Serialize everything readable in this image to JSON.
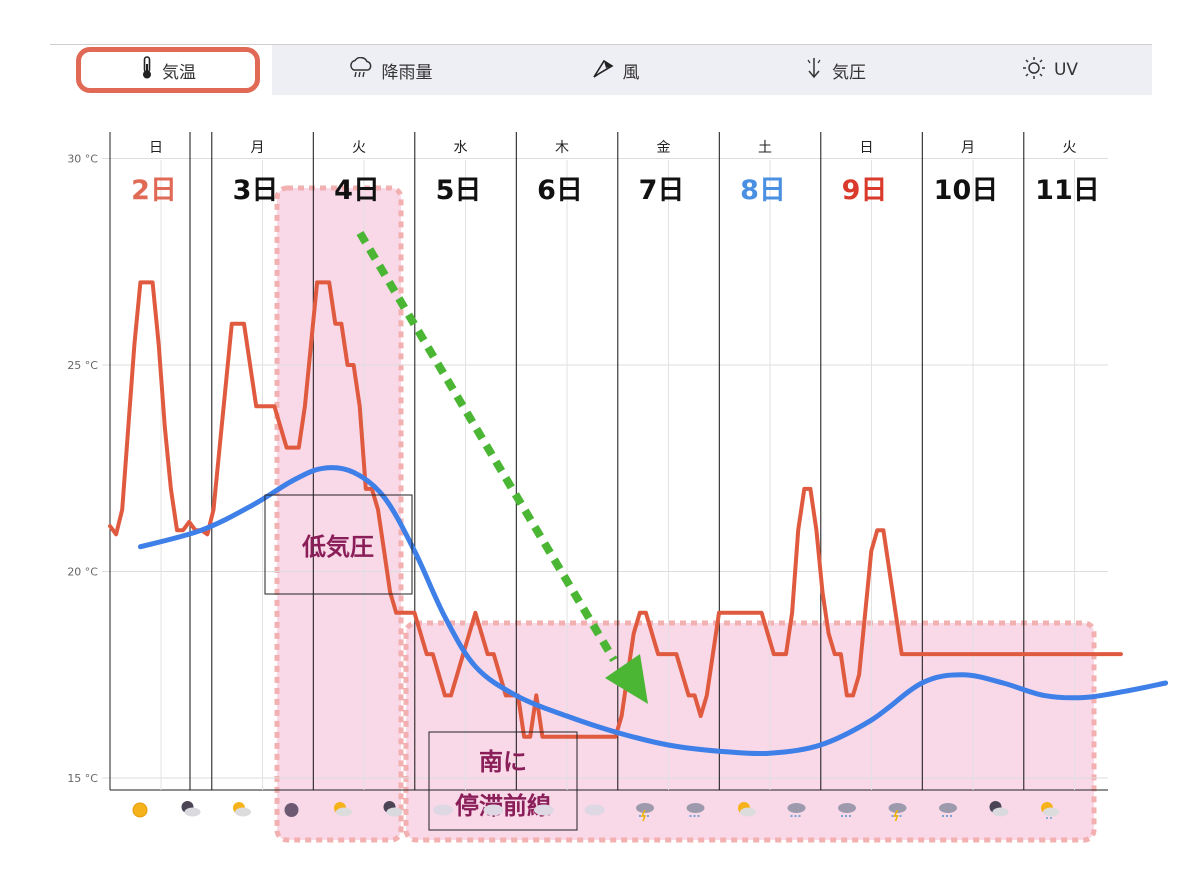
{
  "tabs": [
    {
      "label": "気温",
      "icon": "thermometer-icon"
    },
    {
      "label": "降雨量",
      "icon": "rain-cloud-icon"
    },
    {
      "label": "風",
      "icon": "wind-vane-icon"
    },
    {
      "label": "気圧",
      "icon": "pressure-arrow-icon"
    },
    {
      "label": "UV",
      "icon": "sun-icon"
    }
  ],
  "colors": {
    "temperature_line": "#e05a40",
    "trend_line": "#3f7fe8",
    "highlight_fill": "#f9d8e8",
    "highlight_border": "#f3b0b0",
    "arrow": "#4bb534",
    "date_black": "#111111",
    "date_sunday": "#e06a55",
    "date_saturday": "#4a90e2",
    "date_holiday": "#d93a2b",
    "annotation_text": "#8a1e58",
    "active_tab_border": "#e06a55"
  },
  "chart_data": {
    "type": "line",
    "y_unit": "°C",
    "ylim": [
      14.7,
      30.3
    ],
    "y_ticks": [
      "15 °C",
      "20 °C",
      "25 °C",
      "30 °C"
    ],
    "y_tick_values": [
      15,
      20,
      25,
      30
    ],
    "grid": true,
    "days": [
      {
        "dow": "日",
        "date": "2日",
        "color_key": "date_sunday"
      },
      {
        "dow": "月",
        "date": "3日",
        "color_key": "date_black"
      },
      {
        "dow": "火",
        "date": "4日",
        "color_key": "date_black"
      },
      {
        "dow": "水",
        "date": "5日",
        "color_key": "date_black"
      },
      {
        "dow": "木",
        "date": "6日",
        "color_key": "date_black"
      },
      {
        "dow": "金",
        "date": "7日",
        "color_key": "date_black"
      },
      {
        "dow": "土",
        "date": "8日",
        "color_key": "date_saturday"
      },
      {
        "dow": "日",
        "date": "9日",
        "color_key": "date_holiday"
      },
      {
        "dow": "月",
        "date": "10日",
        "color_key": "date_black"
      },
      {
        "dow": "火",
        "date": "11日",
        "color_key": "date_black"
      }
    ],
    "series": [
      {
        "kind": "temperature",
        "x_days": [
          0.0,
          0.06,
          0.12,
          0.18,
          0.24,
          0.3,
          0.36,
          0.42,
          0.48,
          0.54,
          0.6,
          0.66,
          0.72,
          0.78,
          0.84,
          0.9,
          0.96,
          1.02,
          1.08,
          1.14,
          1.2,
          1.26,
          1.32,
          1.38,
          1.44,
          1.5,
          1.56,
          1.62,
          1.68,
          1.74,
          1.8,
          1.86,
          1.92,
          1.98,
          2.04,
          2.1,
          2.16,
          2.22,
          2.28,
          2.34,
          2.4,
          2.46,
          2.52,
          2.58,
          2.64,
          2.7,
          2.76,
          2.82,
          2.88,
          2.94,
          3.0,
          3.06,
          3.12,
          3.18,
          3.24,
          3.3,
          3.36,
          3.42,
          3.48,
          3.54,
          3.6,
          3.66,
          3.72,
          3.78,
          3.84,
          3.9,
          3.96,
          4.02,
          4.08,
          4.14,
          4.2,
          4.26,
          4.32,
          4.38,
          4.44,
          4.5,
          4.56,
          4.62,
          4.68,
          4.74,
          4.8,
          4.86,
          4.92,
          4.98,
          5.04,
          5.1,
          5.16,
          5.22,
          5.28,
          5.34,
          5.4,
          5.46,
          5.52,
          5.58,
          5.64,
          5.7,
          5.76,
          5.82,
          5.88,
          5.94,
          6.0,
          6.06,
          6.12,
          6.18,
          6.24,
          6.3,
          6.36,
          6.42,
          6.48,
          6.54,
          6.6,
          6.66,
          6.72,
          6.78,
          6.84,
          6.9,
          6.96,
          7.02,
          7.08,
          7.14,
          7.2,
          7.26,
          7.32,
          7.38,
          7.44,
          7.5,
          7.56,
          7.62,
          7.68,
          7.74,
          7.8,
          7.86,
          7.92,
          7.98,
          8.04,
          8.1,
          8.16,
          8.22,
          8.28,
          8.34,
          8.4,
          8.46,
          8.52,
          8.58,
          8.64,
          8.7,
          8.76,
          8.82,
          8.88,
          8.94,
          9.0,
          9.06,
          9.12,
          9.18,
          9.24,
          9.3,
          9.36,
          9.42,
          9.48,
          9.54,
          9.6,
          9.66,
          9.72,
          9.78,
          9.84,
          9.9,
          9.96
        ],
        "values": [
          21.1,
          20.9,
          21.5,
          23.5,
          25.5,
          27.0,
          27.0,
          27.0,
          25.5,
          23.5,
          22.0,
          21.0,
          21.0,
          21.2,
          21.0,
          21.0,
          20.9,
          21.5,
          23.0,
          24.5,
          26.0,
          26.0,
          26.0,
          25.0,
          24.0,
          24.0,
          24.0,
          24.0,
          23.5,
          23.0,
          23.0,
          23.0,
          24.0,
          25.5,
          27.0,
          27.0,
          27.0,
          26.0,
          26.0,
          25.0,
          25.0,
          24.0,
          22.0,
          22.0,
          21.5,
          20.5,
          19.5,
          19.0,
          19.0,
          19.0,
          19.0,
          18.5,
          18.0,
          18.0,
          17.5,
          17.0,
          17.0,
          17.5,
          18.0,
          18.5,
          19.0,
          18.5,
          18.0,
          18.0,
          17.5,
          17.0,
          17.0,
          17.0,
          16.0,
          16.0,
          17.0,
          16.0,
          16.0,
          16.0,
          16.0,
          16.0,
          16.0,
          16.0,
          16.0,
          16.0,
          16.0,
          16.0,
          16.0,
          16.0,
          16.5,
          17.5,
          18.5,
          19.0,
          19.0,
          18.5,
          18.0,
          18.0,
          18.0,
          18.0,
          17.5,
          17.0,
          17.0,
          16.5,
          17.0,
          18.0,
          19.0,
          19.0,
          19.0,
          19.0,
          19.0,
          19.0,
          19.0,
          19.0,
          18.5,
          18.0,
          18.0,
          18.0,
          19.0,
          21.0,
          22.0,
          22.0,
          21.0,
          19.5,
          18.5,
          18.0,
          18.0,
          17.0,
          17.0,
          17.5,
          19.0,
          20.5,
          21.0,
          21.0,
          20.0,
          19.0,
          18.0,
          18.0,
          18.0,
          18.0,
          18.0,
          18.0,
          18.0,
          18.0,
          18.0,
          18.0,
          18.0,
          18.0,
          18.0,
          18.0,
          18.0,
          18.0,
          18.0,
          18.0,
          18.0,
          18.0,
          18.0,
          18.0,
          18.0,
          18.0,
          18.0,
          18.0,
          18.0,
          18.0,
          18.0,
          18.0,
          18.0,
          18.0,
          18.0,
          18.0,
          18.0,
          18.0,
          18.0
        ]
      },
      {
        "kind": "trend",
        "x_days": [
          0.3,
          0.9,
          1.4,
          1.8,
          2.1,
          2.4,
          2.7,
          3.0,
          3.3,
          3.6,
          4.0,
          4.5,
          5.0,
          5.5,
          6.0,
          6.5,
          7.0,
          7.5,
          8.0,
          8.4,
          8.8,
          9.2,
          9.6,
          10.0,
          10.4
        ],
        "values": [
          20.6,
          21.0,
          21.6,
          22.2,
          22.5,
          22.4,
          21.8,
          20.5,
          18.9,
          17.7,
          17.0,
          16.5,
          16.1,
          15.8,
          15.65,
          15.6,
          15.8,
          16.4,
          17.3,
          17.5,
          17.3,
          17.0,
          16.95,
          17.1,
          17.3
        ]
      }
    ],
    "icons": [
      "sunny-icon",
      "moon-cloud-icon",
      "sun-cloud-icon",
      "full-moon-icon",
      "sun-cloud-icon",
      "moon-cloud-icon",
      "cloud-icon",
      "cloud-icon",
      "cloud-icon",
      "cloud-icon",
      "thunder-rain-icon",
      "rain-icon",
      "sun-cloud-icon",
      "rain-icon",
      "rain-icon",
      "thunder-rain-icon",
      "rain-icon",
      "moon-cloud-icon",
      "sun-rain-icon"
    ],
    "annotations": {
      "low_pressure": "低気圧",
      "front_line1": "南に",
      "front_line2": "停滞前線"
    }
  }
}
